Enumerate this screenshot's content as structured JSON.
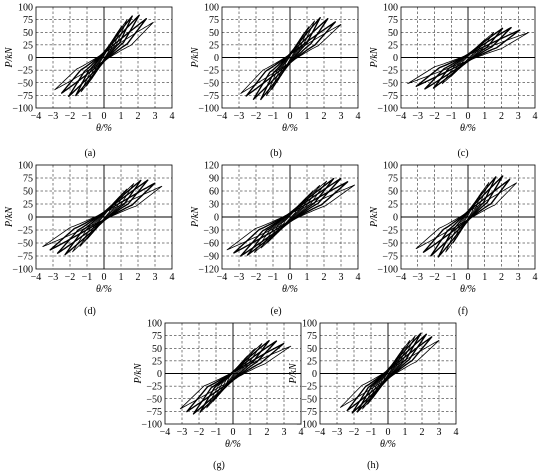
{
  "figure": {
    "panels": [
      {
        "label": "(a)",
        "ylabel": "P/kN",
        "xlabel": "θ/%"
      },
      {
        "label": "(b)",
        "ylabel": "P/kN",
        "xlabel": "θ/%"
      },
      {
        "label": "(c)",
        "ylabel": "P/kN",
        "xlabel": "θ/%"
      },
      {
        "label": "(d)",
        "ylabel": "P/kN",
        "xlabel": "θ/%"
      },
      {
        "label": "(e)",
        "ylabel": "P/kN",
        "xlabel": "θ/%"
      },
      {
        "label": "(f)",
        "ylabel": "P/kN",
        "xlabel": "θ/%"
      },
      {
        "label": "(g)",
        "ylabel": "P/kN",
        "xlabel": "θ/%"
      },
      {
        "label": "(h)",
        "ylabel": "P/kN",
        "xlabel": "θ/%"
      }
    ]
  },
  "chart_data": [
    {
      "type": "line",
      "label": "(a)",
      "xlabel": "θ/%",
      "ylabel": "P/kN",
      "xlim": [
        -4,
        4
      ],
      "ylim": [
        -100,
        100
      ],
      "xticks": [
        -4,
        -3,
        -2,
        -1,
        0,
        1,
        2,
        3,
        4
      ],
      "yticks": [
        -100,
        -75,
        -50,
        -25,
        0,
        25,
        50,
        75,
        100
      ],
      "grid": true,
      "grid_style": "dashed",
      "series": [
        {
          "amplitudes": [
            0.4,
            0.7,
            1.0,
            1.3,
            1.6,
            2.0,
            2.4,
            2.8
          ],
          "peak_load_pos": 85,
          "peak_load_neg": -78,
          "ultimate_drift_pos": 2.9,
          "ultimate_drift_neg": -2.9
        }
      ]
    },
    {
      "type": "line",
      "label": "(b)",
      "xlabel": "θ/%",
      "ylabel": "P/kN",
      "xlim": [
        -4,
        4
      ],
      "ylim": [
        -100,
        100
      ],
      "xticks": [
        -4,
        -3,
        -2,
        -1,
        0,
        1,
        2,
        3,
        4
      ],
      "yticks": [
        -100,
        -75,
        -50,
        -25,
        0,
        25,
        50,
        75,
        100
      ],
      "grid": true,
      "grid_style": "dashed",
      "series": [
        {
          "amplitudes": [
            0.4,
            0.7,
            1.0,
            1.3,
            1.6,
            2.0,
            2.4,
            2.7
          ],
          "peak_load_pos": 80,
          "peak_load_neg": -85,
          "ultimate_drift_pos": 3.0,
          "ultimate_drift_neg": -2.9
        }
      ]
    },
    {
      "type": "line",
      "label": "(c)",
      "xlabel": "θ/%",
      "ylabel": "P/kN",
      "xlim": [
        -4,
        4
      ],
      "ylim": [
        -100,
        100
      ],
      "xticks": [
        -4,
        -3,
        -2,
        -1,
        0,
        1,
        2,
        3,
        4
      ],
      "yticks": [
        -100,
        -75,
        -50,
        -25,
        0,
        25,
        50,
        75,
        100
      ],
      "grid": true,
      "grid_style": "dashed",
      "series": [
        {
          "amplitudes": [
            0.5,
            1.0,
            1.5,
            2.0,
            2.5,
            3.0,
            3.5
          ],
          "peak_load_pos": 60,
          "peak_load_neg": -63,
          "ultimate_drift_pos": 3.6,
          "ultimate_drift_neg": -3.6
        }
      ]
    },
    {
      "type": "line",
      "label": "(d)",
      "xlabel": "θ/%",
      "ylabel": "P/kN",
      "xlim": [
        -4,
        4
      ],
      "ylim": [
        -100,
        100
      ],
      "xticks": [
        -4,
        -3,
        -2,
        -1,
        0,
        1,
        2,
        3,
        4
      ],
      "yticks": [
        -100,
        -75,
        -50,
        -25,
        0,
        25,
        50,
        75,
        100
      ],
      "grid": true,
      "grid_style": "dashed",
      "series": [
        {
          "amplitudes": [
            0.5,
            0.9,
            1.3,
            1.7,
            2.1,
            2.5,
            2.9,
            3.3
          ],
          "peak_load_pos": 72,
          "peak_load_neg": -73,
          "ultimate_drift_pos": 3.4,
          "ultimate_drift_neg": -3.6
        }
      ]
    },
    {
      "type": "line",
      "label": "(e)",
      "xlabel": "θ/%",
      "ylabel": "P/kN",
      "xlim": [
        -4,
        4
      ],
      "ylim": [
        -120,
        120
      ],
      "xticks": [
        -4,
        -3,
        -2,
        -1,
        0,
        1,
        2,
        3,
        4
      ],
      "yticks": [
        -120,
        -90,
        -60,
        -30,
        0,
        30,
        60,
        90,
        120
      ],
      "grid": true,
      "grid_style": "dashed",
      "series": [
        {
          "amplitudes": [
            0.5,
            0.9,
            1.3,
            1.7,
            2.1,
            2.5,
            2.9,
            3.3,
            3.7
          ],
          "peak_load_pos": 90,
          "peak_load_neg": -90,
          "ultimate_drift_pos": 3.8,
          "ultimate_drift_neg": -3.7
        }
      ]
    },
    {
      "type": "line",
      "label": "(f)",
      "xlabel": "θ/%",
      "ylabel": "P/kN",
      "xlim": [
        -4,
        4
      ],
      "ylim": [
        -100,
        100
      ],
      "xticks": [
        -4,
        -3,
        -2,
        -1,
        0,
        1,
        2,
        3,
        4
      ],
      "yticks": [
        -100,
        -75,
        -50,
        -25,
        0,
        25,
        50,
        75,
        100
      ],
      "grid": true,
      "grid_style": "dashed",
      "series": [
        {
          "amplitudes": [
            0.4,
            0.8,
            1.2,
            1.6,
            2.0,
            2.4,
            2.8
          ],
          "peak_load_pos": 80,
          "peak_load_neg": -78,
          "ultimate_drift_pos": 2.9,
          "ultimate_drift_neg": -3.1
        }
      ]
    },
    {
      "type": "line",
      "label": "(g)",
      "xlabel": "θ/%",
      "ylabel": "P/kN",
      "xlim": [
        -4,
        4
      ],
      "ylim": [
        -100,
        100
      ],
      "xticks": [
        -4,
        -3,
        -2,
        -1,
        0,
        1,
        2,
        3,
        4
      ],
      "yticks": [
        -100,
        -75,
        -50,
        -25,
        0,
        25,
        50,
        75,
        100
      ],
      "grid": true,
      "grid_style": "dashed",
      "series": [
        {
          "amplitudes": [
            0.4,
            0.8,
            1.2,
            1.6,
            2.0,
            2.4,
            2.8,
            3.2
          ],
          "peak_load_pos": 66,
          "peak_load_neg": -80,
          "ultimate_drift_pos": 3.4,
          "ultimate_drift_neg": -3.1
        }
      ]
    },
    {
      "type": "line",
      "label": "(h)",
      "xlabel": "θ/%",
      "ylabel": "P/kN",
      "xlim": [
        -4,
        4
      ],
      "ylim": [
        -100,
        100
      ],
      "xticks": [
        -4,
        -3,
        -2,
        -1,
        0,
        1,
        2,
        3,
        4
      ],
      "yticks": [
        -100,
        -75,
        -50,
        -25,
        0,
        25,
        50,
        75,
        100
      ],
      "grid": true,
      "grid_style": "dashed",
      "series": [
        {
          "amplitudes": [
            0.3,
            0.6,
            0.9,
            1.2,
            1.5,
            1.8,
            2.1,
            2.4,
            2.8
          ],
          "peak_load_pos": 80,
          "peak_load_neg": -78,
          "ultimate_drift_pos": 3.0,
          "ultimate_drift_neg": -2.8
        }
      ]
    }
  ]
}
